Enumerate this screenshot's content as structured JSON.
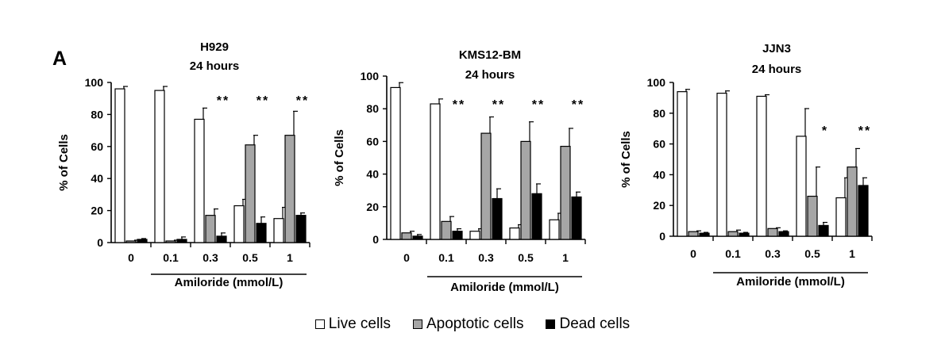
{
  "panel_letter": "A",
  "legend": {
    "live_label": "Live cells",
    "apoptotic_label": "Apoptotic cells",
    "dead_label": "Dead cells"
  },
  "colors": {
    "live": "#ffffff",
    "apoptotic": "#a6a6a6",
    "dead": "#000000",
    "axis": "#000000"
  },
  "chart_data": [
    {
      "type": "bar",
      "title": "H929",
      "subtitle": "24 hours",
      "xlabel": "Amiloride (mmol/L)",
      "ylabel": "% of Cells",
      "ylim": [
        0,
        100
      ],
      "yticks": [
        0,
        20,
        40,
        60,
        80,
        100
      ],
      "categories": [
        "0",
        "0.1",
        "0.3",
        "0.5",
        "1"
      ],
      "series": [
        {
          "name": "Live cells",
          "values": [
            96,
            95,
            77,
            23,
            15
          ],
          "errors": [
            1.5,
            2.5,
            7,
            4,
            7
          ]
        },
        {
          "name": "Apoptotic cells",
          "values": [
            1,
            1,
            17,
            61,
            67
          ],
          "errors": [
            0.5,
            0.5,
            4,
            6,
            15
          ]
        },
        {
          "name": "Dead cells",
          "values": [
            2,
            2,
            4,
            12,
            17
          ],
          "errors": [
            0.5,
            1.5,
            2,
            4,
            1.5
          ]
        }
      ],
      "significance": [
        "",
        "",
        "**",
        "**",
        "**"
      ]
    },
    {
      "type": "bar",
      "title": "KMS12-BM",
      "subtitle": "24 hours",
      "xlabel": "Amiloride (mmol/L)",
      "ylabel": "% of Cells",
      "ylim": [
        0,
        100
      ],
      "yticks": [
        0,
        20,
        40,
        60,
        80,
        100
      ],
      "categories": [
        "0",
        "0.1",
        "0.3",
        "0.5",
        "1"
      ],
      "series": [
        {
          "name": "Live cells",
          "values": [
            93,
            83,
            5,
            7,
            12
          ],
          "errors": [
            3,
            3,
            1.5,
            2,
            4
          ]
        },
        {
          "name": "Apoptotic cells",
          "values": [
            4,
            11,
            65,
            60,
            57
          ],
          "errors": [
            1,
            3,
            10,
            12,
            11
          ]
        },
        {
          "name": "Dead cells",
          "values": [
            2,
            5,
            25,
            28,
            26
          ],
          "errors": [
            1,
            1.5,
            6,
            6,
            3
          ]
        }
      ],
      "significance": [
        "",
        "**",
        "**",
        "**",
        "**"
      ]
    },
    {
      "type": "bar",
      "title": "JJN3",
      "subtitle": "24 hours",
      "xlabel": "Amiloride (mmol/L)",
      "ylabel": "% of Cells",
      "ylim": [
        0,
        100
      ],
      "yticks": [
        0,
        20,
        40,
        60,
        80,
        100
      ],
      "categories": [
        "0",
        "0.1",
        "0.3",
        "0.5",
        "1"
      ],
      "series": [
        {
          "name": "Live cells",
          "values": [
            94,
            93,
            91,
            65,
            25
          ],
          "errors": [
            1.5,
            1.5,
            1,
            18,
            13
          ]
        },
        {
          "name": "Apoptotic cells",
          "values": [
            3,
            3,
            5,
            26,
            45
          ],
          "errors": [
            0.5,
            1,
            0.5,
            19,
            12
          ]
        },
        {
          "name": "Dead cells",
          "values": [
            2,
            2,
            3,
            7,
            33
          ],
          "errors": [
            0.5,
            0.5,
            0.5,
            2,
            5
          ]
        }
      ],
      "significance": [
        "",
        "",
        "",
        "*",
        "**"
      ]
    }
  ]
}
